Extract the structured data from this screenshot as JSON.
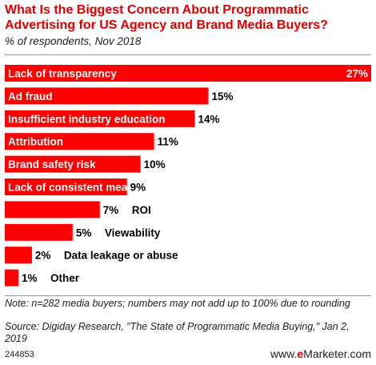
{
  "chart_data": {
    "type": "bar",
    "title": "What Is the Biggest Concern About Programmatic Advertising for US Agency and Brand Media Buyers?",
    "subtitle": "% of respondents, Nov 2018",
    "categories": [
      "Lack of transparency",
      "Ad fraud",
      "Insufficient industry education",
      "Attribution",
      "Brand safety risk",
      "Lack of consistent measurement",
      "ROI",
      "Viewability",
      "Data leakage or abuse",
      "Other"
    ],
    "values": [
      27,
      15,
      14,
      11,
      10,
      9,
      7,
      5,
      2,
      1
    ],
    "value_labels": [
      "27%",
      "15%",
      "14%",
      "11%",
      "10%",
      "9%",
      "7%",
      "5%",
      "2%",
      "1%"
    ],
    "bar_color": "#ff0000",
    "grid": false,
    "legend": "none"
  },
  "footer": {
    "note": "Note: n=282 media buyers; numbers may not add up to 100% due to rounding",
    "source": "Source: Digiday Research, \"The State of Programmatic Media Buying,\" Jan 2, 2019",
    "chart_id": "244853",
    "brand_prefix": "www.",
    "brand_e": "e",
    "brand_suffix": "Marketer.com"
  },
  "colors": {
    "title": "#e00000",
    "bar": "#ff0000",
    "label_inside": "#ffffff",
    "label_outside": "#000000"
  }
}
